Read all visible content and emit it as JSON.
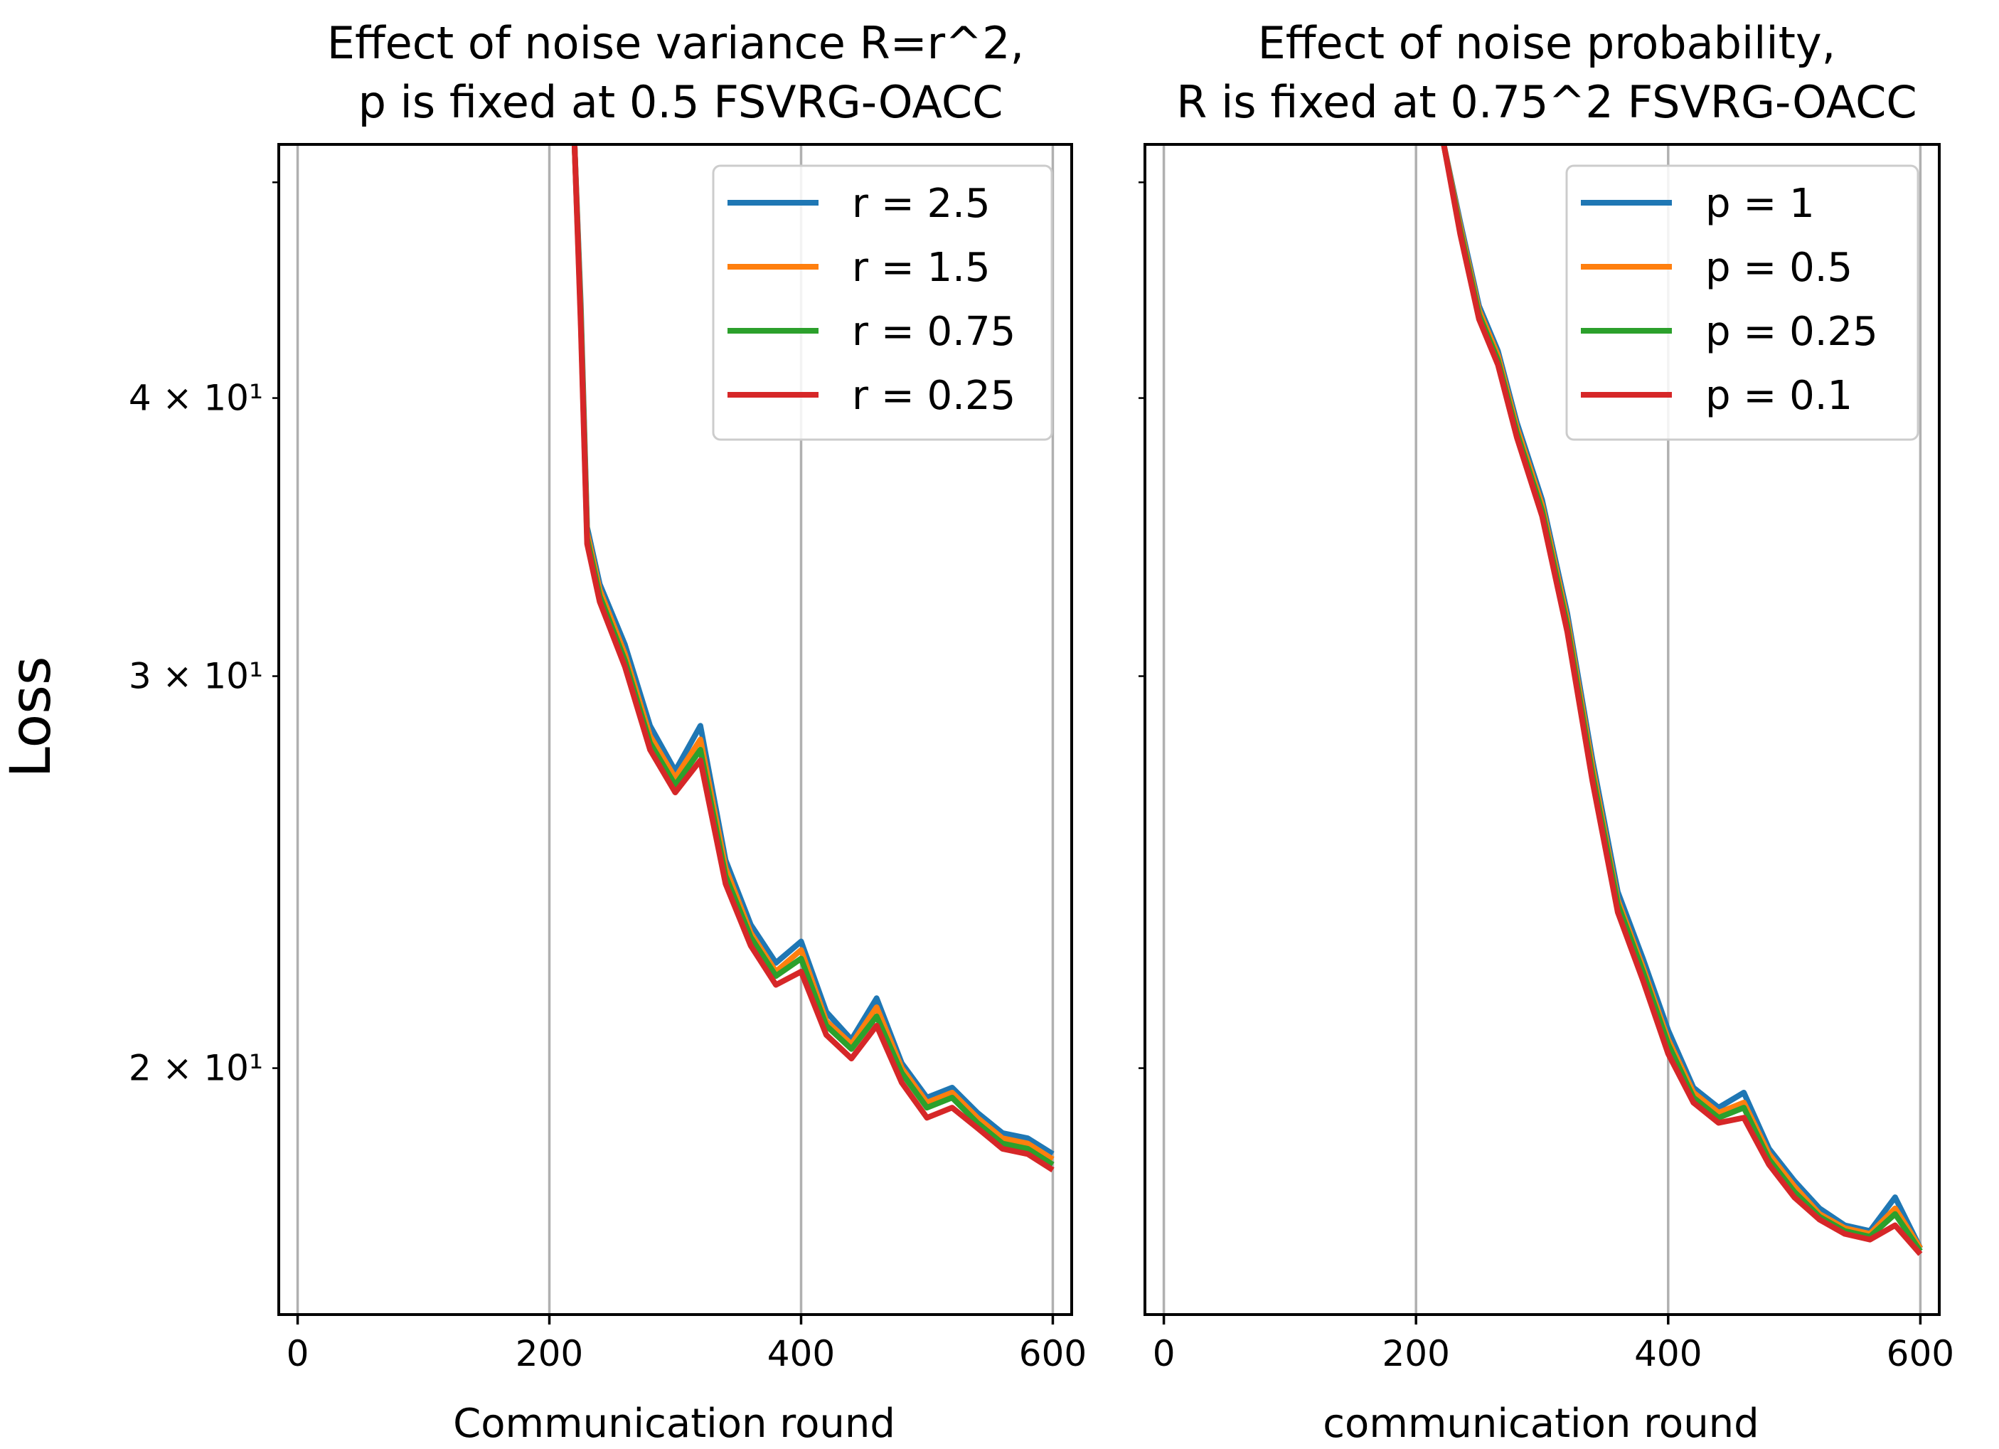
{
  "ylabel": "Loss",
  "colors": {
    "blue": "#1f77b4",
    "orange": "#ff7f0e",
    "green": "#2ca02c",
    "red": "#d62728",
    "grid": "#b0b0b0"
  },
  "chart_data": [
    {
      "type": "line",
      "title_line1": "Effect of noise variance R=r^2,",
      "title_line2": "p is fixed at 0.5 FSVRG-OACC",
      "xlabel": "Communication round",
      "ylabel": "Loss",
      "yscale": "log",
      "xlim": [
        -15,
        615
      ],
      "ylim": [
        15.5,
        52
      ],
      "xticks": [
        0,
        200,
        400,
        600
      ],
      "xtick_labels": [
        "0",
        "200",
        "400",
        "600"
      ],
      "yticks": [
        20,
        30,
        40
      ],
      "ytick_labels": [
        "2 × 10¹",
        "3 × 10¹",
        "4 × 10¹"
      ],
      "grid": "x",
      "legend": "top-right",
      "series": [
        {
          "name": "r = 2.5",
          "color": "#1f77b4",
          "x": [
            220,
            225,
            230,
            240,
            260,
            280,
            300,
            320,
            340,
            360,
            380,
            400,
            420,
            440,
            460,
            480,
            500,
            520,
            540,
            560,
            580,
            600
          ],
          "y": [
            52,
            44,
            35,
            33,
            31,
            28.5,
            27.2,
            28.5,
            24.8,
            23.2,
            22.3,
            22.8,
            21.2,
            20.6,
            21.5,
            20.1,
            19.4,
            19.6,
            19.1,
            18.7,
            18.6,
            18.3
          ]
        },
        {
          "name": "r = 1.5",
          "color": "#ff7f0e",
          "x": [
            220,
            225,
            230,
            240,
            260,
            280,
            300,
            320,
            340,
            360,
            380,
            400,
            420,
            440,
            460,
            480,
            500,
            520,
            540,
            560,
            580,
            600
          ],
          "y": [
            52,
            43.6,
            34.8,
            32.8,
            30.7,
            28.2,
            27.0,
            28.1,
            24.6,
            23.0,
            22.1,
            22.6,
            21.0,
            20.5,
            21.3,
            20.0,
            19.3,
            19.5,
            19.0,
            18.6,
            18.5,
            18.2
          ]
        },
        {
          "name": "r = 0.75",
          "color": "#2ca02c",
          "x": [
            220,
            225,
            230,
            240,
            260,
            280,
            300,
            320,
            340,
            360,
            380,
            400,
            420,
            440,
            460,
            480,
            500,
            520,
            540,
            560,
            580,
            600
          ],
          "y": [
            52,
            43.3,
            34.6,
            32.6,
            30.5,
            28.0,
            26.8,
            27.8,
            24.4,
            22.9,
            22.0,
            22.4,
            20.9,
            20.4,
            21.1,
            19.9,
            19.2,
            19.4,
            18.9,
            18.5,
            18.4,
            18.1
          ]
        },
        {
          "name": "r = 0.25",
          "color": "#d62728",
          "x": [
            220,
            225,
            230,
            240,
            260,
            280,
            300,
            320,
            340,
            360,
            380,
            400,
            420,
            440,
            460,
            480,
            500,
            520,
            540,
            560,
            580,
            600
          ],
          "y": [
            52,
            43,
            34.4,
            32.4,
            30.3,
            27.8,
            26.6,
            27.5,
            24.2,
            22.7,
            21.8,
            22.1,
            20.7,
            20.2,
            20.9,
            19.7,
            19.0,
            19.2,
            18.8,
            18.4,
            18.3,
            18.0
          ]
        }
      ]
    },
    {
      "type": "line",
      "title_line1": "Effect of noise probability,",
      "title_line2": "R is fixed at 0.75^2 FSVRG-OACC",
      "xlabel": "communication round",
      "ylabel": "",
      "yscale": "log",
      "xlim": [
        -15,
        615
      ],
      "ylim": [
        15.5,
        52
      ],
      "xticks": [
        0,
        200,
        400,
        600
      ],
      "xtick_labels": [
        "0",
        "200",
        "400",
        "600"
      ],
      "yticks": [
        20,
        30,
        40
      ],
      "ytick_labels": [
        "",
        "",
        ""
      ],
      "grid": "x",
      "legend": "top-right",
      "series": [
        {
          "name": "p = 1",
          "color": "#1f77b4",
          "x": [
            222,
            235,
            250,
            265,
            280,
            300,
            320,
            340,
            360,
            380,
            400,
            420,
            440,
            460,
            480,
            500,
            520,
            540,
            560,
            580,
            600
          ],
          "y": [
            52,
            48,
            44,
            42,
            39,
            36,
            32,
            27.5,
            24.0,
            22.4,
            20.8,
            19.6,
            19.2,
            19.5,
            18.4,
            17.8,
            17.3,
            17.0,
            16.9,
            17.5,
            16.6
          ]
        },
        {
          "name": "p = 0.5",
          "color": "#ff7f0e",
          "x": [
            222,
            235,
            250,
            265,
            280,
            300,
            320,
            340,
            360,
            380,
            400,
            420,
            440,
            460,
            480,
            500,
            520,
            540,
            560,
            580,
            600
          ],
          "y": [
            52,
            47.8,
            43.8,
            41.8,
            38.8,
            35.8,
            31.8,
            27.3,
            23.8,
            22.2,
            20.6,
            19.5,
            19.1,
            19.3,
            18.3,
            17.7,
            17.2,
            16.95,
            16.85,
            17.3,
            16.6
          ]
        },
        {
          "name": "p = 0.25",
          "color": "#2ca02c",
          "x": [
            222,
            235,
            250,
            265,
            280,
            300,
            320,
            340,
            360,
            380,
            400,
            420,
            440,
            460,
            480,
            500,
            520,
            540,
            560,
            580,
            600
          ],
          "y": [
            52,
            47.6,
            43.6,
            41.6,
            38.6,
            35.6,
            31.6,
            27.1,
            23.7,
            22.1,
            20.5,
            19.4,
            19.0,
            19.2,
            18.2,
            17.6,
            17.15,
            16.9,
            16.8,
            17.2,
            16.55
          ]
        },
        {
          "name": "p = 0.1",
          "color": "#d62728",
          "x": [
            222,
            235,
            250,
            265,
            280,
            300,
            320,
            340,
            360,
            380,
            400,
            420,
            440,
            460,
            480,
            500,
            520,
            540,
            560,
            580,
            600
          ],
          "y": [
            52,
            47.4,
            43.4,
            41.4,
            38.4,
            35.4,
            31.4,
            26.9,
            23.5,
            21.9,
            20.3,
            19.3,
            18.9,
            19.0,
            18.1,
            17.5,
            17.1,
            16.85,
            16.75,
            17.0,
            16.5
          ]
        }
      ]
    }
  ]
}
